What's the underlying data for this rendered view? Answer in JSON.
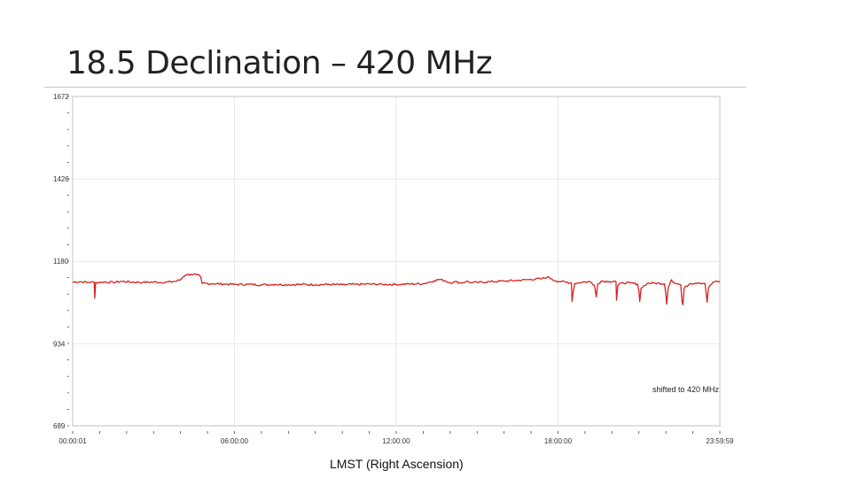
{
  "slide": {
    "title": "18.5 Declination – 420 MHz",
    "x_caption": "LMST (Right Ascension)"
  },
  "chart_data": {
    "type": "line",
    "title": "",
    "xlabel": "LMST (Right Ascension)",
    "ylabel": "",
    "x_unit": "hours",
    "xlim": [
      0,
      24
    ],
    "ylim": [
      689,
      1672
    ],
    "x_tick_labels": [
      {
        "x": 0,
        "label": "00:00:01"
      },
      {
        "x": 6,
        "label": "06:00:00"
      },
      {
        "x": 12,
        "label": "12:00:00"
      },
      {
        "x": 18,
        "label": "18:00:00"
      },
      {
        "x": 24,
        "label": "23:59:59"
      }
    ],
    "y_tick_labels": [
      {
        "y": 1672,
        "label": "1672"
      },
      {
        "y": 1426,
        "label": "1426"
      },
      {
        "y": 1180,
        "label": "1180"
      },
      {
        "y": 934,
        "label": "934"
      },
      {
        "y": 689,
        "label": "689"
      }
    ],
    "grid": true,
    "legend": "none",
    "annotation": "shifted to 420 MHz",
    "line_color": "#d42020",
    "grid_color": "#e2e2e2",
    "series": [
      {
        "color": "#d42020",
        "points": [
          [
            0.0,
            1118
          ],
          [
            0.3,
            1119
          ],
          [
            0.6,
            1117
          ],
          [
            0.8,
            1118
          ],
          [
            0.82,
            1070
          ],
          [
            0.85,
            1117
          ],
          [
            1.2,
            1118
          ],
          [
            1.5,
            1117
          ],
          [
            1.8,
            1120
          ],
          [
            2.2,
            1118
          ],
          [
            2.6,
            1117
          ],
          [
            3.0,
            1118
          ],
          [
            3.4,
            1117
          ],
          [
            3.8,
            1120
          ],
          [
            4.0,
            1125
          ],
          [
            4.1,
            1134
          ],
          [
            4.2,
            1140
          ],
          [
            4.4,
            1141
          ],
          [
            4.6,
            1140
          ],
          [
            4.75,
            1133
          ],
          [
            4.8,
            1114
          ],
          [
            5.2,
            1113
          ],
          [
            5.6,
            1112
          ],
          [
            6.0,
            1111
          ],
          [
            6.5,
            1111
          ],
          [
            7.0,
            1110
          ],
          [
            7.5,
            1111
          ],
          [
            8.0,
            1110
          ],
          [
            8.5,
            1111
          ],
          [
            9.0,
            1110
          ],
          [
            9.5,
            1111
          ],
          [
            10.0,
            1110
          ],
          [
            10.5,
            1111
          ],
          [
            11.0,
            1112
          ],
          [
            11.5,
            1111
          ],
          [
            12.0,
            1111
          ],
          [
            12.5,
            1112
          ],
          [
            13.0,
            1113
          ],
          [
            13.2,
            1117
          ],
          [
            13.4,
            1122
          ],
          [
            13.6,
            1126
          ],
          [
            13.8,
            1122
          ],
          [
            14.0,
            1116
          ],
          [
            14.2,
            1119
          ],
          [
            14.4,
            1115
          ],
          [
            14.6,
            1120
          ],
          [
            14.8,
            1116
          ],
          [
            15.0,
            1117
          ],
          [
            15.5,
            1119
          ],
          [
            16.0,
            1121
          ],
          [
            16.5,
            1123
          ],
          [
            17.0,
            1126
          ],
          [
            17.4,
            1128
          ],
          [
            17.6,
            1133
          ],
          [
            17.75,
            1128
          ],
          [
            17.9,
            1122
          ],
          [
            18.0,
            1120
          ],
          [
            18.3,
            1118
          ],
          [
            18.5,
            1115
          ],
          [
            18.52,
            1060
          ],
          [
            18.55,
            1082
          ],
          [
            18.62,
            1114
          ],
          [
            18.9,
            1118
          ],
          [
            19.2,
            1119
          ],
          [
            19.35,
            1108
          ],
          [
            19.42,
            1074
          ],
          [
            19.47,
            1112
          ],
          [
            19.6,
            1121
          ],
          [
            19.9,
            1120
          ],
          [
            20.15,
            1120
          ],
          [
            20.17,
            1064
          ],
          [
            20.22,
            1108
          ],
          [
            20.4,
            1116
          ],
          [
            20.7,
            1115
          ],
          [
            20.95,
            1112
          ],
          [
            21.0,
            1090
          ],
          [
            21.03,
            1060
          ],
          [
            21.08,
            1100
          ],
          [
            21.3,
            1114
          ],
          [
            21.6,
            1115
          ],
          [
            21.95,
            1113
          ],
          [
            22.0,
            1080
          ],
          [
            22.03,
            1052
          ],
          [
            22.08,
            1098
          ],
          [
            22.2,
            1125
          ],
          [
            22.35,
            1114
          ],
          [
            22.55,
            1110
          ],
          [
            22.6,
            1060
          ],
          [
            22.63,
            1050
          ],
          [
            22.68,
            1100
          ],
          [
            22.9,
            1114
          ],
          [
            23.2,
            1116
          ],
          [
            23.45,
            1114
          ],
          [
            23.5,
            1080
          ],
          [
            23.53,
            1058
          ],
          [
            23.58,
            1100
          ],
          [
            23.75,
            1118
          ],
          [
            24.0,
            1120
          ]
        ]
      }
    ]
  }
}
